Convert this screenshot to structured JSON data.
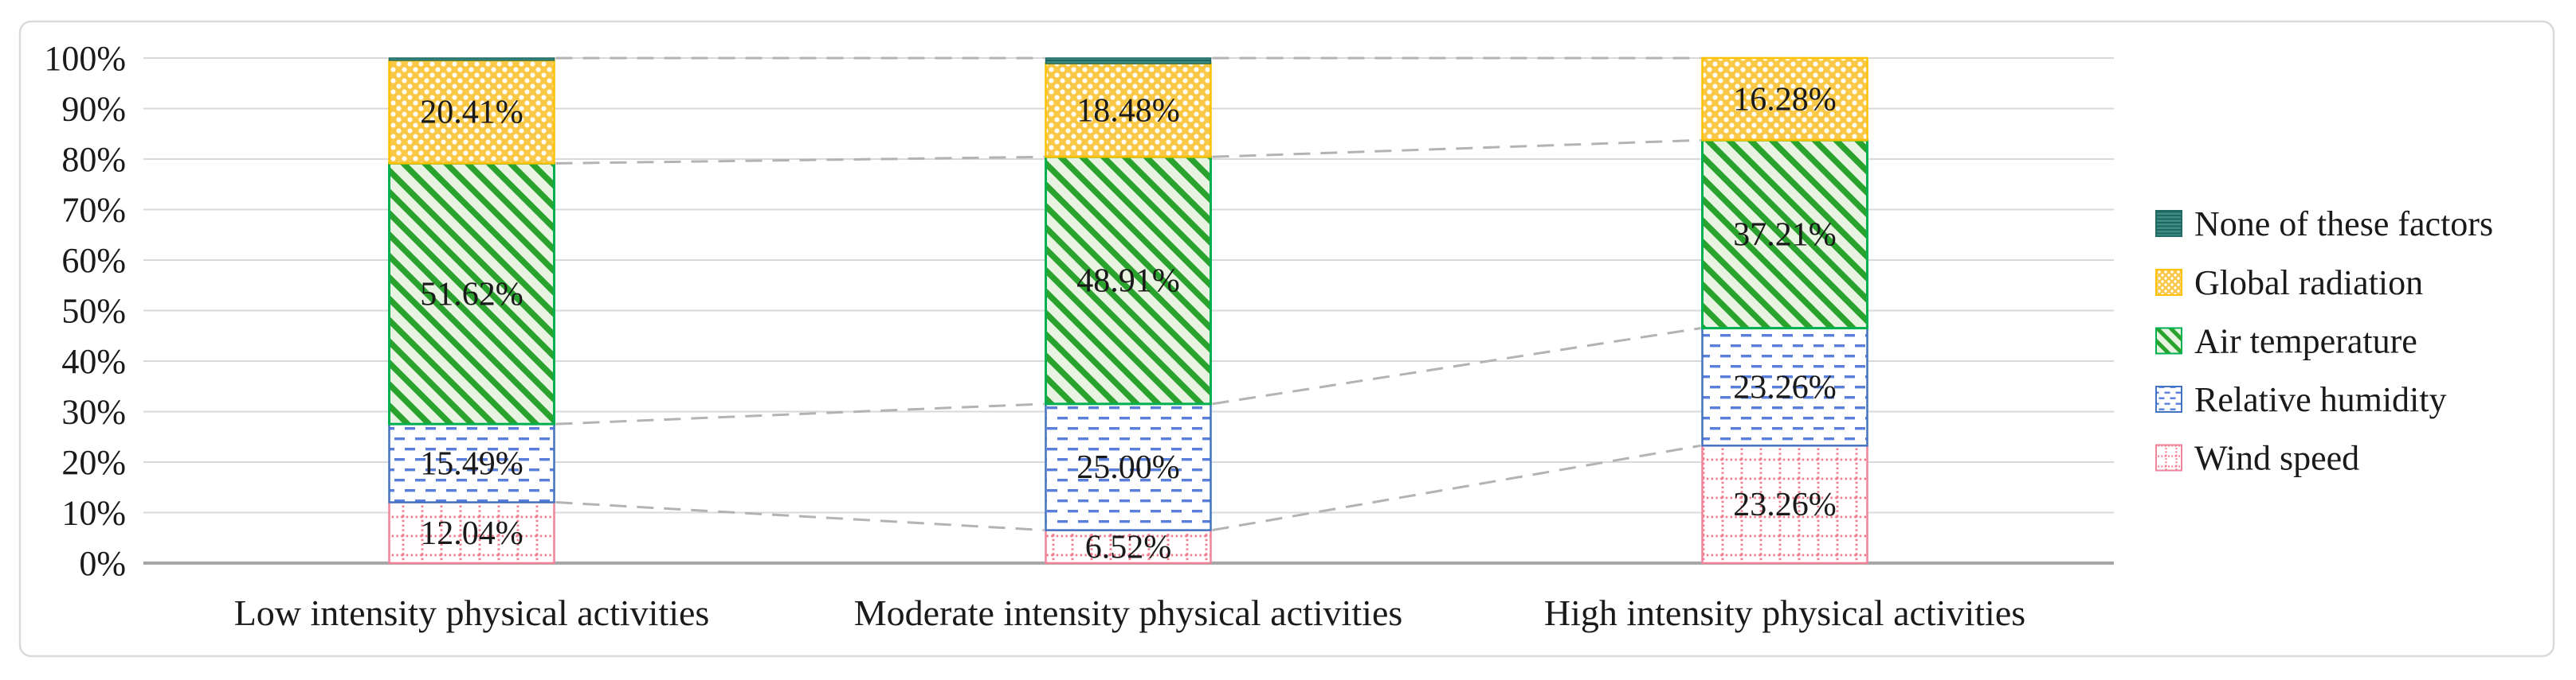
{
  "figure": {
    "background": "#ffffff",
    "frame_border_color": "#dadada"
  },
  "chart_data": {
    "type": "bar",
    "subtype": "stacked-100-percent",
    "title": "",
    "xlabel": "",
    "ylabel": "",
    "ylim": [
      0,
      100
    ],
    "grid": true,
    "gridline_color": "#d9d9d9",
    "axis_line_color": "#a6a6a6",
    "connector_line_color": "#b3b3b3",
    "legend_position": "right",
    "categories": [
      "Low intensity physical activities",
      "Moderate intensity physical activities",
      "High intensity physical activities"
    ],
    "y_ticks": [
      "0%",
      "10%",
      "20%",
      "30%",
      "40%",
      "50%",
      "60%",
      "70%",
      "80%",
      "90%",
      "100%"
    ],
    "series": [
      {
        "name": "Wind speed",
        "values": [
          12.04,
          6.52,
          23.26
        ],
        "labels": [
          "12.04%",
          "6.52%",
          "23.26%"
        ],
        "pattern": "dotted-grid",
        "color": "#f5798d",
        "border": "#f2849a"
      },
      {
        "name": "Relative humidity",
        "values": [
          15.49,
          25.0,
          23.26
        ],
        "labels": [
          "15.49%",
          "25.00%",
          "23.26%"
        ],
        "pattern": "horizontal-dashes",
        "color": "#5a7edc",
        "border": "#4472c4"
      },
      {
        "name": "Air temperature",
        "values": [
          51.62,
          48.91,
          37.21
        ],
        "labels": [
          "51.62%",
          "48.91%",
          "37.21%"
        ],
        "pattern": "diagonal-stripes",
        "color": "#2aa22e",
        "border": "#00b050"
      },
      {
        "name": "Global radiation",
        "values": [
          20.41,
          18.48,
          16.28
        ],
        "labels": [
          "20.41%",
          "18.48%",
          "16.28%"
        ],
        "pattern": "white-dots",
        "color": "#f9c847",
        "border": "#ffc000"
      },
      {
        "name": "None of these factors",
        "values": [
          0.44,
          1.09,
          0
        ],
        "labels": [
          "",
          "",
          ""
        ],
        "pattern": "teal-horizontal-lines",
        "color": "#3e8c83",
        "border": "#1e6b63"
      }
    ],
    "legend_order": [
      "None of these factors",
      "Global radiation",
      "Air temperature",
      "Relative humidity",
      "Wind speed"
    ]
  }
}
